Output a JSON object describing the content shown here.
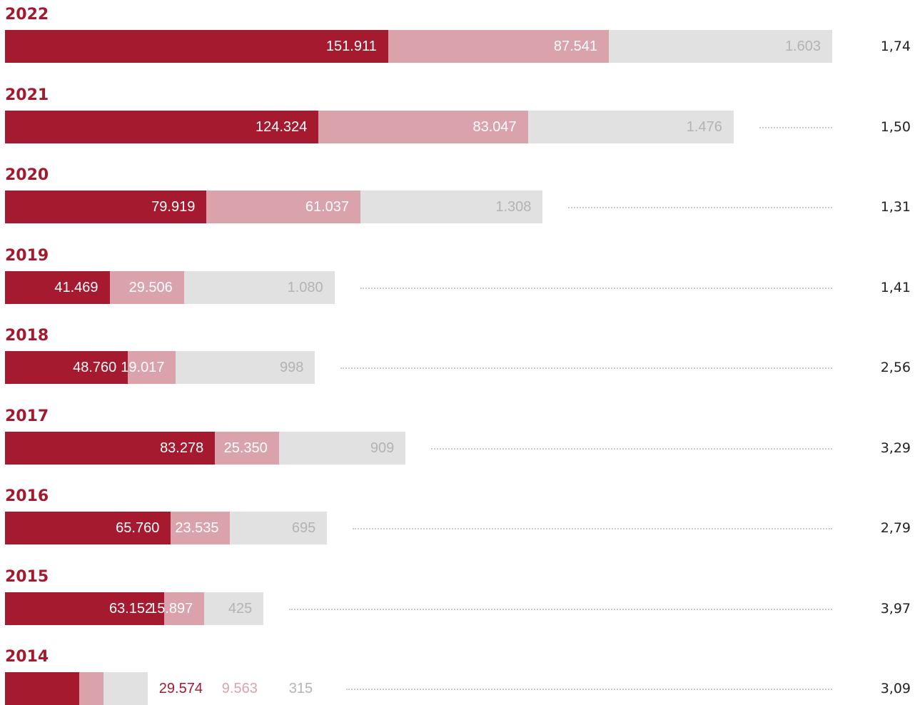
{
  "colors": {
    "series_1": "#a51a2f",
    "series_2": "#daa3ac",
    "series_3": "#e1e1e1",
    "year_label": "#a31a2e",
    "label_on_dark": "#ffffff",
    "label_on_light_grey": "#b3b3b3",
    "ratio_text": "#222222",
    "dots": "#c9c9c9"
  },
  "chart_data": {
    "type": "bar",
    "orientation": "horizontal",
    "stacked": true,
    "grid": false,
    "categories": [
      "2022",
      "2021",
      "2020",
      "2019",
      "2018",
      "2017",
      "2016",
      "2015",
      "2014"
    ],
    "series": [
      {
        "values": [
          151911,
          124324,
          79919,
          41469,
          48760,
          83278,
          65760,
          63152,
          29574
        ],
        "labels": [
          "151.911",
          "124.324",
          "79.919",
          "41.469",
          "48.760",
          "83.278",
          "65.760",
          "63.152",
          "29.574"
        ]
      },
      {
        "values": [
          87541,
          83047,
          61037,
          29506,
          19017,
          25350,
          23535,
          15897,
          9563
        ],
        "labels": [
          "87.541",
          "83.047",
          "61.037",
          "29.506",
          "19.017",
          "25.350",
          "23.535",
          "15.897",
          "9.563"
        ]
      },
      {
        "values": [
          1603,
          1476,
          1308,
          1080,
          998,
          909,
          695,
          425,
          315
        ],
        "labels": [
          "1.603",
          "1.476",
          "1.308",
          "1.080",
          "998",
          "909",
          "695",
          "425",
          "315"
        ]
      }
    ],
    "right_values": [
      "1,74",
      "1,50",
      "1,31",
      "1,41",
      "2,56",
      "3,29",
      "2,79",
      "3,97",
      "3,09"
    ]
  }
}
